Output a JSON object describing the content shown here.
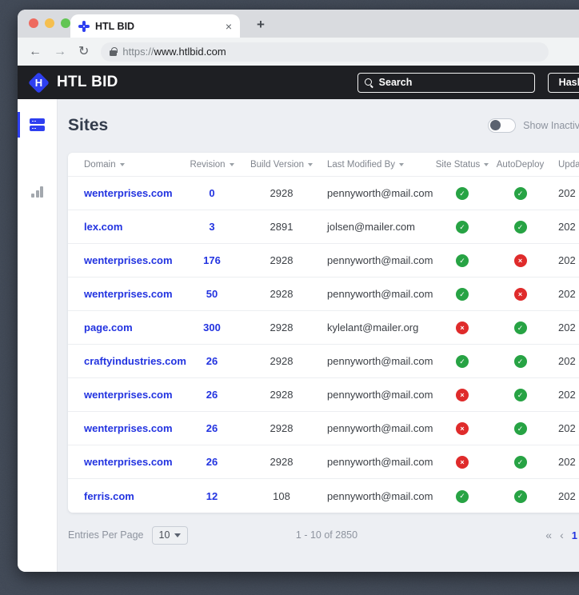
{
  "browser": {
    "tab_title": "HTL BID",
    "close_tab": "×",
    "new_tab": "+",
    "back": "←",
    "forward": "→",
    "reload": "↻",
    "url_scheme": "https://",
    "url_domain": "www.htlbid.com"
  },
  "header": {
    "brand": "HTL BID",
    "logo_letter": "H",
    "search_placeholder": "Search",
    "hashtag_button": "Hashtag"
  },
  "page": {
    "title": "Sites",
    "toggle_label": "Show Inactive"
  },
  "table": {
    "fields": [
      "domain",
      "revision",
      "build",
      "modified_by",
      "site_status",
      "autodeploy",
      "updated"
    ],
    "columns": [
      {
        "key": "domain",
        "label": "Domain",
        "sortable": true
      },
      {
        "key": "revision",
        "label": "Revision",
        "sortable": true
      },
      {
        "key": "build-version",
        "label": "Build Version",
        "sortable": true
      },
      {
        "key": "last-modified-by",
        "label": "Last Modified By",
        "sortable": true
      },
      {
        "key": "site-status",
        "label": "Site Status",
        "sortable": true
      },
      {
        "key": "autodeploy",
        "label": "AutoDeploy",
        "sortable": false
      },
      {
        "key": "updated",
        "label": "Updat",
        "sortable": false
      }
    ],
    "rows": [
      {
        "domain": "wenterprises.com",
        "revision": "0",
        "build": "2928",
        "modified_by": "pennyworth@mail.com",
        "site_status": "ok",
        "autodeploy": "ok",
        "updated": "202"
      },
      {
        "domain": "lex.com",
        "revision": "3",
        "build": "2891",
        "modified_by": "jolsen@mailer.com",
        "site_status": "ok",
        "autodeploy": "ok",
        "updated": "202"
      },
      {
        "domain": "wenterprises.com",
        "revision": "176",
        "build": "2928",
        "modified_by": "pennyworth@mail.com",
        "site_status": "ok",
        "autodeploy": "fail",
        "updated": "202"
      },
      {
        "domain": "wenterprises.com",
        "revision": "50",
        "build": "2928",
        "modified_by": "pennyworth@mail.com",
        "site_status": "ok",
        "autodeploy": "fail",
        "updated": "202"
      },
      {
        "domain": "page.com",
        "revision": "300",
        "build": "2928",
        "modified_by": "kylelant@mailer.org",
        "site_status": "fail",
        "autodeploy": "ok",
        "updated": "202"
      },
      {
        "domain": "craftyindustries.com",
        "revision": "26",
        "build": "2928",
        "modified_by": "pennyworth@mail.com",
        "site_status": "ok",
        "autodeploy": "ok",
        "updated": "202"
      },
      {
        "domain": "wenterprises.com",
        "revision": "26",
        "build": "2928",
        "modified_by": "pennyworth@mail.com",
        "site_status": "fail",
        "autodeploy": "ok",
        "updated": "202"
      },
      {
        "domain": "wenterprises.com",
        "revision": "26",
        "build": "2928",
        "modified_by": "pennyworth@mail.com",
        "site_status": "fail",
        "autodeploy": "ok",
        "updated": "202"
      },
      {
        "domain": "wenterprises.com",
        "revision": "26",
        "build": "2928",
        "modified_by": "pennyworth@mail.com",
        "site_status": "fail",
        "autodeploy": "ok",
        "updated": "202"
      },
      {
        "domain": "ferris.com",
        "revision": "12",
        "build": "108",
        "modified_by": "pennyworth@mail.com",
        "site_status": "ok",
        "autodeploy": "ok",
        "updated": "202"
      }
    ],
    "status_glyphs": {
      "ok": "✓",
      "fail": "×"
    }
  },
  "footer": {
    "entries_label": "Entries Per Page",
    "entries_value": "10",
    "range_text": "1 - 10 of 2850",
    "pagination": [
      {
        "label": "«",
        "active": false
      },
      {
        "label": "‹",
        "active": false
      },
      {
        "label": "1",
        "active": true
      }
    ]
  },
  "colors": {
    "accent_blue": "#2e3ff0",
    "link_blue": "#2233e0",
    "status_green": "#27a344",
    "status_red": "#df2b2b",
    "header_dark": "#1e1f23",
    "page_bg": "#edeff3"
  }
}
